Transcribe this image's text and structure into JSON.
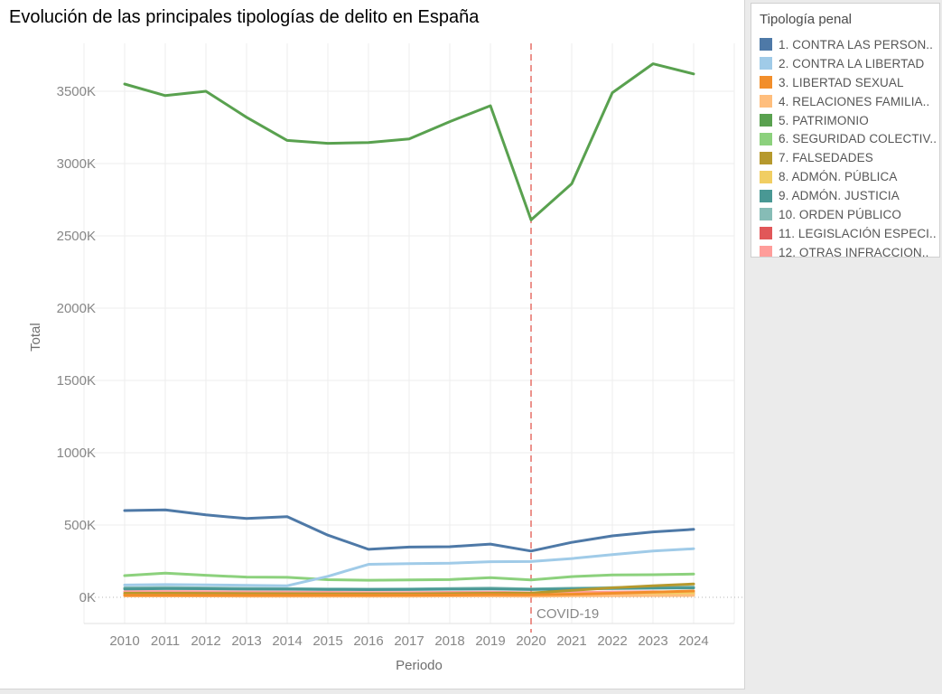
{
  "page": {
    "background_color": "#ebebeb"
  },
  "title": "Evolución de las principales tipologías de delito en España",
  "legend": {
    "title": "Tipología penal"
  },
  "chart_data": {
    "type": "line",
    "title": "Evolución de las principales tipologías de delito en España",
    "xlabel": "Periodo",
    "ylabel": "Total",
    "x": [
      "2010",
      "2011",
      "2012",
      "2013",
      "2014",
      "2015",
      "2016",
      "2017",
      "2018",
      "2019",
      "2020",
      "2021",
      "2022",
      "2023",
      "2024"
    ],
    "y_tick_labels": [
      "0K",
      "500K",
      "1000K",
      "1500K",
      "2000K",
      "2500K",
      "3000K",
      "3500K"
    ],
    "ylim_k": [
      0,
      3830
    ],
    "values_unit": "thousands (K)",
    "grid": true,
    "legend_position": "top-right",
    "annotation": {
      "label": "COVID-19",
      "x": "2020",
      "color": "#ec928c"
    },
    "series": [
      {
        "name": "1. CONTRA LAS PERSON..",
        "color": "#4E79A7",
        "values_k": [
          600,
          605,
          570,
          545,
          558,
          430,
          332,
          348,
          350,
          368,
          320,
          380,
          425,
          452,
          470
        ]
      },
      {
        "name": "2. CONTRA LA LIBERTAD",
        "color": "#A0CBE8",
        "values_k": [
          85,
          88,
          86,
          83,
          80,
          145,
          228,
          233,
          236,
          246,
          248,
          268,
          295,
          320,
          336
        ]
      },
      {
        "name": "3. LIBERTAD SEXUAL",
        "color": "#F28E2B",
        "values_k": [
          14,
          14,
          13,
          13,
          13,
          14,
          14,
          15,
          16,
          18,
          17,
          21,
          28,
          36,
          44
        ]
      },
      {
        "name": "4. RELACIONES FAMILIA..",
        "color": "#FFBE7D",
        "values_k": [
          9,
          9,
          9,
          8,
          8,
          8,
          8,
          8,
          9,
          9,
          8,
          10,
          11,
          12,
          13
        ]
      },
      {
        "name": "5. PATRIMONIO",
        "color": "#59A14F",
        "values_k": [
          3550,
          3470,
          3500,
          3320,
          3160,
          3140,
          3145,
          3170,
          3290,
          3400,
          2610,
          2860,
          3490,
          3690,
          3620
        ]
      },
      {
        "name": "6. SEGURIDAD COLECTIV..",
        "color": "#8CD17D",
        "values_k": [
          150,
          167,
          152,
          140,
          138,
          122,
          118,
          120,
          123,
          136,
          120,
          143,
          155,
          156,
          161
        ]
      },
      {
        "name": "7. FALSEDADES",
        "color": "#B6992D",
        "values_k": [
          28,
          28,
          27,
          26,
          25,
          24,
          24,
          24,
          26,
          28,
          30,
          48,
          66,
          80,
          92
        ]
      },
      {
        "name": "8. ADMÓN. PÚBLICA",
        "color": "#F1CE63",
        "values_k": [
          20,
          20,
          19,
          18,
          18,
          17,
          17,
          17,
          18,
          19,
          18,
          22,
          25,
          27,
          28
        ]
      },
      {
        "name": "9. ADMÓN. JUSTICIA",
        "color": "#499894",
        "values_k": [
          58,
          60,
          59,
          57,
          56,
          54,
          53,
          54,
          56,
          58,
          54,
          58,
          61,
          63,
          65
        ]
      },
      {
        "name": "10. ORDEN PÚBLICO",
        "color": "#86BCB6",
        "values_k": [
          66,
          68,
          65,
          62,
          60,
          58,
          57,
          58,
          61,
          64,
          58,
          63,
          67,
          69,
          71
        ]
      },
      {
        "name": "11. LEGISLACIÓN ESPECI..",
        "color": "#E15759",
        "values_k": [
          16,
          16,
          15,
          14,
          14,
          13,
          13,
          13,
          14,
          15,
          14,
          17,
          20,
          24,
          27
        ]
      },
      {
        "name": "12. OTRAS INFRACCION..",
        "color": "#FF9D9A",
        "values_k": [
          40,
          40,
          39,
          37,
          36,
          34,
          33,
          33,
          34,
          36,
          31,
          34,
          37,
          39,
          33
        ]
      }
    ]
  }
}
